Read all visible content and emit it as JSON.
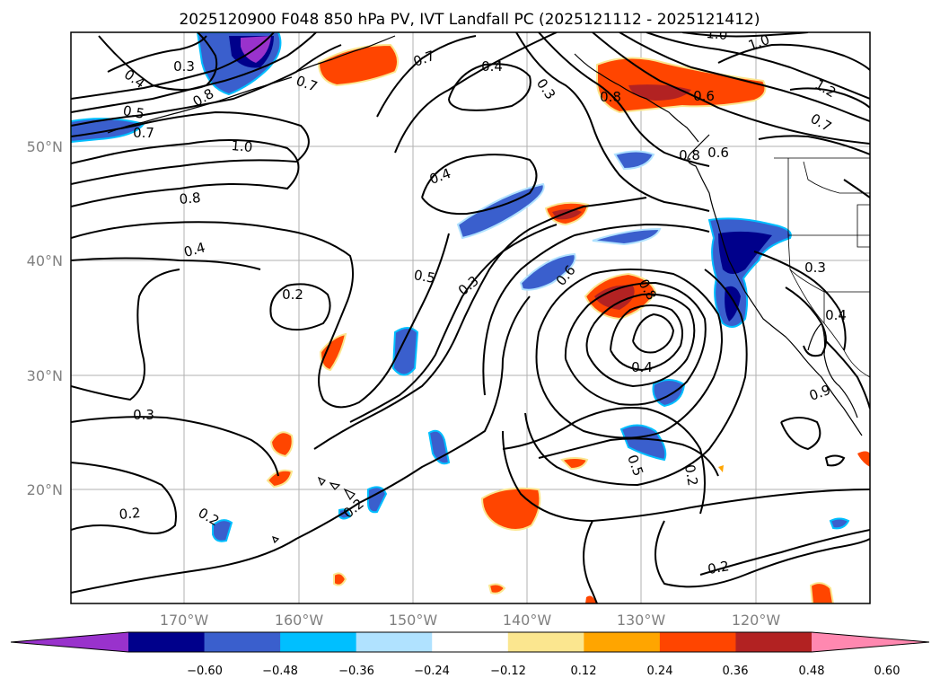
{
  "title": "2025120900 F048 850 hPa PV, IVT Landfall PC (2025121112 - 2025121412)",
  "lat_labels": [
    "50°N",
    "40°N",
    "30°N",
    "20°N"
  ],
  "lon_labels": [
    "170°W",
    "160°W",
    "150°W",
    "140°W",
    "130°W",
    "120°W"
  ],
  "colorbar": {
    "ticks": [
      "−0.60",
      "−0.48",
      "−0.36",
      "−0.24",
      "−0.12",
      "0.12",
      "0.24",
      "0.36",
      "0.48",
      "0.60"
    ],
    "colors": [
      "#9932cc",
      "#00008b",
      "#3a5fcd",
      "#00bfff",
      "#b0e2ff",
      "#ffffff",
      "#fbe68f",
      "#ffa500",
      "#ff4500",
      "#b22222",
      "#ff88b0"
    ]
  },
  "contour_labels": [
    "0.3",
    "0.4",
    "0.5",
    "0.7",
    "0.8",
    "1.0",
    "0.8",
    "0.4",
    "0.2",
    "0.3",
    "0.2",
    "0.2",
    "0.7",
    "0.7",
    "0.4",
    "0.3",
    "0.4",
    "0.5",
    "0.3",
    "0.6",
    "0.8",
    "0.4",
    "0.5",
    "0.2",
    "0.2",
    "1.0",
    "1.0",
    "1.2",
    "0.7",
    "0.2",
    "0.8",
    "0.6",
    "0.8",
    "0.6",
    "0.3",
    "0.4",
    "0.9"
  ]
}
